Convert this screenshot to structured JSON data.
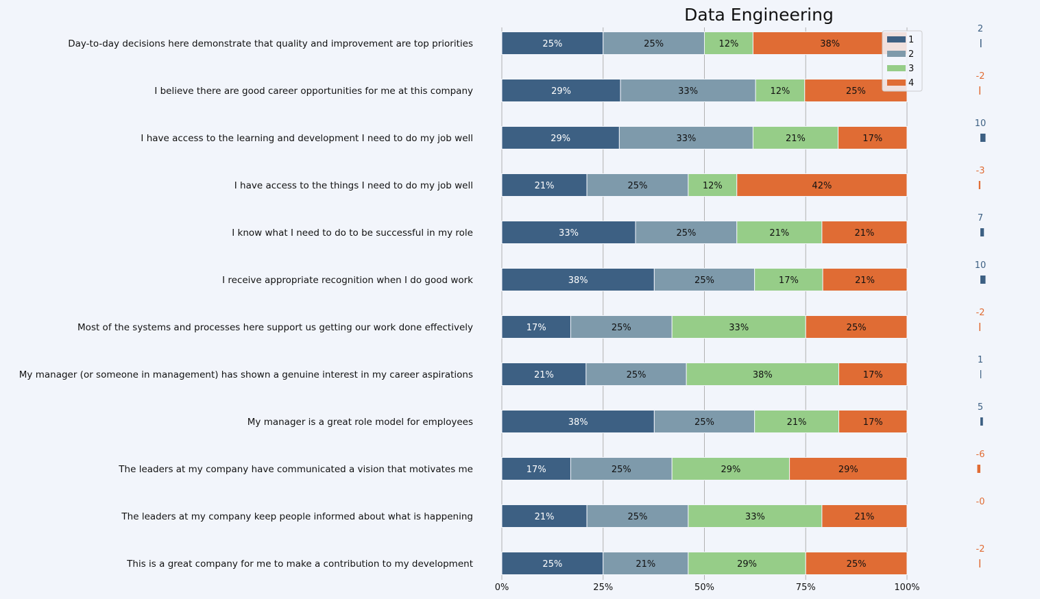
{
  "chart_data": {
    "type": "bar",
    "orientation": "horizontal",
    "stacked": true,
    "normalized": true,
    "title": "Data Engineering",
    "categories": [
      "Day-to-day decisions here demonstrate that quality and improvement are top priorities",
      "I believe there are good career opportunities for me at this company",
      "I have access to the learning and development I need to do my job well",
      "I have access to the things I need to do my job well",
      "I know what I need to do to be successful in my role",
      "I receive appropriate recognition when I do good work",
      "Most of the systems and processes here support us getting our work done effectively",
      "My manager (or someone in management) has shown a genuine interest in my career aspirations",
      "My manager is a great role model for employees",
      "The leaders at my company have communicated a vision that motivates me",
      "The leaders at my company keep people informed about what is happening",
      "This is a great company for me to make a contribution to my development"
    ],
    "series": [
      {
        "name": "1",
        "color": "#3d6083",
        "label_color": "#ffffff",
        "values": [
          25,
          29,
          29,
          21,
          33,
          38,
          17,
          21,
          38,
          17,
          21,
          25
        ]
      },
      {
        "name": "2",
        "color": "#7e9aab",
        "label_color": "#111111",
        "values": [
          25,
          33,
          33,
          25,
          25,
          25,
          25,
          25,
          25,
          25,
          25,
          21
        ]
      },
      {
        "name": "3",
        "color": "#96cd88",
        "label_color": "#111111",
        "values": [
          12,
          12,
          21,
          12,
          21,
          17,
          33,
          38,
          21,
          29,
          33,
          29
        ]
      },
      {
        "name": "4",
        "color": "#e06c34",
        "label_color": "#111111",
        "values": [
          38,
          25,
          17,
          42,
          21,
          21,
          25,
          17,
          17,
          29,
          21,
          25
        ]
      }
    ],
    "segment_labels": [
      [
        "25%",
        "25%",
        "12%",
        "38%"
      ],
      [
        "29%",
        "33%",
        "12%",
        "25%"
      ],
      [
        "29%",
        "33%",
        "21%",
        "17%"
      ],
      [
        "21%",
        "25%",
        "12%",
        "42%"
      ],
      [
        "33%",
        "25%",
        "21%",
        "21%"
      ],
      [
        "38%",
        "25%",
        "17%",
        "21%"
      ],
      [
        "17%",
        "25%",
        "33%",
        "25%"
      ],
      [
        "21%",
        "25%",
        "38%",
        "17%"
      ],
      [
        "38%",
        "25%",
        "21%",
        "17%"
      ],
      [
        "17%",
        "25%",
        "29%",
        "29%"
      ],
      [
        "21%",
        "25%",
        "33%",
        "21%"
      ],
      [
        "25%",
        "21%",
        "29%",
        "25%"
      ]
    ],
    "net_scores": [
      2,
      -2,
      10,
      -3,
      7,
      10,
      -2,
      1,
      5,
      -6,
      0,
      -2
    ],
    "net_score_labels": [
      "2",
      "-2",
      "10",
      "-3",
      "7",
      "10",
      "-2",
      "1",
      "5",
      "-6",
      "-0",
      "-2"
    ],
    "net_positive_color": "#3d6083",
    "net_negative_color": "#e06c34",
    "xlim": [
      0,
      100
    ],
    "xticks": [
      "0%",
      "25%",
      "50%",
      "75%",
      "100%"
    ],
    "grid": "vertical",
    "legend": "top-right",
    "background": "#f2f5fb"
  }
}
